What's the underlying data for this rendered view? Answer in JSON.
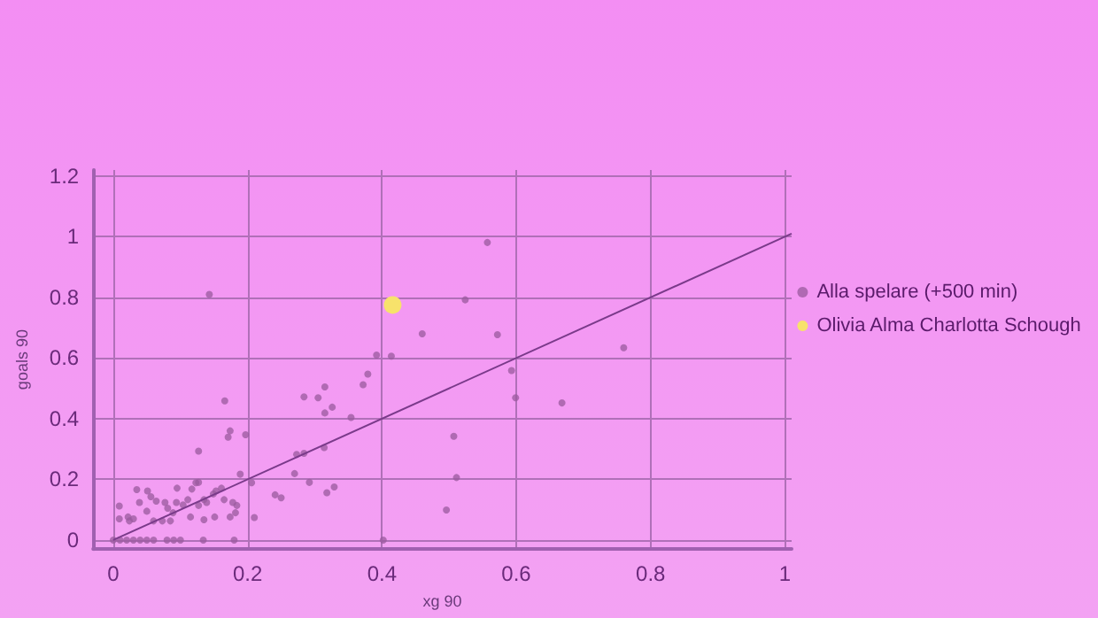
{
  "chart_data": {
    "type": "scatter",
    "xlabel": "xg 90",
    "ylabel": "goals 90",
    "xlim": [
      -0.03,
      1.01
    ],
    "ylim": [
      -0.03,
      1.22
    ],
    "xticks": [
      0,
      0.2,
      0.4,
      0.6,
      0.8,
      1
    ],
    "yticks": [
      0,
      0.2,
      0.4,
      0.6,
      0.8,
      1,
      1.2
    ],
    "grid": true,
    "legend": "right",
    "marker": "circle",
    "series": [
      {
        "name": "Alla spelare (+500 min)",
        "color": "#9a5a9e",
        "x": [
          0.143,
          0.46,
          0.392,
          0.414,
          0.379,
          0.372,
          0.315,
          0.284,
          0.305,
          0.326,
          0.315,
          0.354,
          0.166,
          0.174,
          0.171,
          0.197,
          0.127,
          0.273,
          0.284,
          0.314,
          0.27,
          0.292,
          0.318,
          0.329,
          0.241,
          0.25,
          0.189,
          0.206,
          0.21,
          0.18,
          0.134,
          0.402,
          0.009,
          0.035,
          0.051,
          0.056,
          0.039,
          0.022,
          0.009,
          0.024,
          0.03,
          0.06,
          0.064,
          0.077,
          0.081,
          0.085,
          0.094,
          0.095,
          0.104,
          0.111,
          0.117,
          0.123,
          0.127,
          0.115,
          0.127,
          0.135,
          0.135,
          0.139,
          0.149,
          0.151,
          0.161,
          0.165,
          0.174,
          0.178,
          0.184,
          0.182,
          0.153,
          0.073,
          0.089,
          0.05,
          0,
          0.01,
          0.02,
          0.03,
          0.04,
          0.05,
          0.06,
          0.08,
          0.09,
          0.1,
          0.557,
          0.524,
          0.572,
          0.76,
          0.593,
          0.599,
          0.668,
          0.507,
          0.511,
          0.496
        ],
        "values": [
          0.81,
          0.68,
          0.61,
          0.606,
          0.547,
          0.512,
          0.505,
          0.472,
          0.469,
          0.438,
          0.419,
          0.404,
          0.459,
          0.36,
          0.339,
          0.347,
          0.293,
          0.282,
          0.286,
          0.305,
          0.219,
          0.19,
          0.156,
          0.175,
          0.149,
          0.139,
          0.217,
          0.189,
          0.074,
          0,
          0,
          0,
          0.112,
          0.166,
          0.162,
          0.143,
          0.124,
          0.076,
          0.07,
          0.063,
          0.07,
          0.063,
          0.128,
          0.124,
          0.105,
          0.063,
          0.124,
          0.171,
          0.116,
          0.133,
          0.168,
          0.189,
          0.19,
          0.076,
          0.114,
          0.133,
          0.067,
          0.124,
          0.152,
          0.076,
          0.171,
          0.133,
          0.076,
          0.124,
          0.114,
          0.09,
          0.162,
          0.063,
          0.09,
          0.095,
          0,
          0,
          0,
          0,
          0,
          0,
          0,
          0,
          0,
          0,
          0.981,
          0.792,
          0.677,
          0.634,
          0.559,
          0.469,
          0.452,
          0.342,
          0.206,
          0.099
        ]
      },
      {
        "name": "Olivia Alma Charlotta Schough",
        "color": "#f7e26b",
        "x": [
          0.416
        ],
        "values": [
          0.775
        ]
      },
      {
        "type": "line",
        "color": "#7a3a8a",
        "marker": "none",
        "x": [
          0,
          1.01
        ],
        "values": [
          0,
          1.01
        ]
      }
    ]
  }
}
